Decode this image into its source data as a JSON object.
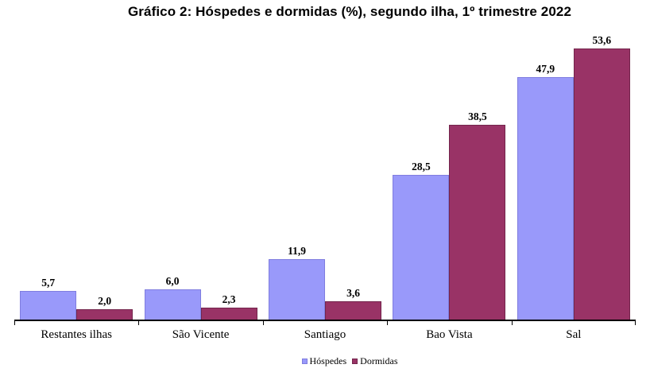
{
  "title": "Gráfico 2: Hóspedes e dormidas (%), segundo ilha, 1º trimestre 2022",
  "chart_data": {
    "type": "bar",
    "title": "Gráfico 2: Hóspedes e dormidas (%), segundo ilha, 1º trimestre 2022",
    "categories": [
      "Restantes ilhas",
      "São Vicente",
      "Santiago",
      "Bao Vista",
      "Sal"
    ],
    "series": [
      {
        "name": "Hóspedes",
        "color": "#9999FA",
        "border_color": "#7F7DDF",
        "values": [
          5.7,
          6.0,
          11.9,
          28.5,
          47.9
        ],
        "value_labels": [
          "5,7",
          "6,0",
          "11,9",
          "28,5",
          "47,9"
        ]
      },
      {
        "name": "Dormidas",
        "color": "#993366",
        "border_color": "#73254C",
        "values": [
          2.0,
          2.3,
          3.6,
          38.5,
          53.6
        ],
        "value_labels": [
          "2,0",
          "2,3",
          "3,6",
          "38,5",
          "53,6"
        ]
      }
    ],
    "ylim": [
      0,
      60
    ],
    "grid": false,
    "y_axis_visible": false,
    "data_labels": true,
    "decimal_separator": ",",
    "legend_position": "bottom"
  },
  "legend": {
    "items": [
      {
        "label": "Hóspedes",
        "color": "#9999FA",
        "border_color": "#7F7DDF"
      },
      {
        "label": "Dormidas",
        "color": "#993366",
        "border_color": "#73254C"
      }
    ]
  }
}
